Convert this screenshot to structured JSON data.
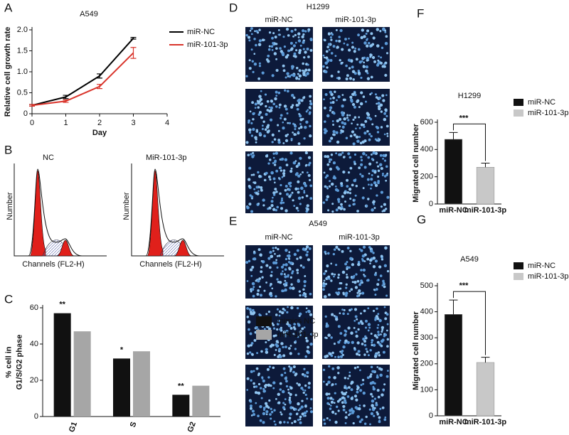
{
  "panel_labels": [
    "A",
    "B",
    "C",
    "D",
    "E",
    "F",
    "G"
  ],
  "flow_cytometry": {
    "titles": [
      "NC",
      "MiR-101-3p"
    ],
    "xlabel": "Channels (FL2-H)",
    "ylabel": "Number"
  },
  "micrographs": [
    {
      "title": "H1299",
      "columns": [
        "miR-NC",
        "miR-101-3p"
      ]
    },
    {
      "title": "A549",
      "columns": [
        "miR-NC",
        "miR-101-3p"
      ]
    }
  ],
  "chart_data": [
    {
      "type": "line",
      "title": "A549",
      "xlabel": "Day",
      "ylabel": "Relative cell growth rate",
      "x": [
        0,
        1,
        2,
        3
      ],
      "series": [
        {
          "name": "miR-NC",
          "color": "#000000",
          "values": [
            0.2,
            0.4,
            0.9,
            1.8
          ],
          "errors": [
            0.02,
            0.04,
            0.05,
            0.02
          ]
        },
        {
          "name": "miR-101-3p",
          "color": "#d9342b",
          "values": [
            0.2,
            0.3,
            0.65,
            1.45
          ],
          "errors": [
            0.02,
            0.03,
            0.05,
            0.13
          ]
        }
      ],
      "xlim": [
        0,
        4
      ],
      "xticks": [
        0,
        1,
        2,
        3,
        4
      ],
      "ylim": [
        0,
        2
      ],
      "yticks": [
        0,
        0.5,
        {
          "value": 1,
          "label": "1.0"
        },
        1.5,
        {
          "value": 2,
          "label": "2.0"
        }
      ]
    },
    {
      "type": "bar",
      "ylabel": [
        "% cell in",
        "G1/S/G2 phase"
      ],
      "categories": [
        "G1",
        "S",
        "G2"
      ],
      "series": [
        {
          "name": "mimics NC",
          "color": "#111111",
          "values": [
            57,
            32,
            12
          ]
        },
        {
          "name": "miR-101-3p",
          "color": "#a6a6a6",
          "values": [
            47,
            36,
            17
          ]
        }
      ],
      "annotations": [
        "**",
        "*",
        "**"
      ],
      "ylim": [
        0,
        60
      ],
      "yticks": [
        0,
        20,
        40,
        60
      ]
    },
    {
      "type": "bar",
      "title": "H1299",
      "ylabel": "Migrated cell number",
      "categories": [
        "miR-NC",
        "miR-101-3p"
      ],
      "values": [
        475,
        270
      ],
      "errors": [
        50,
        30
      ],
      "colors": [
        "#111111",
        "#c8c8c8"
      ],
      "annotation": "***",
      "ylim": [
        0,
        600
      ],
      "yticks": [
        0,
        200,
        400,
        600
      ]
    },
    {
      "type": "bar",
      "title": "A549",
      "ylabel": "Migrated cell number",
      "categories": [
        "miR-NC",
        "miR-101-3p"
      ],
      "values": [
        390,
        205
      ],
      "errors": [
        55,
        20
      ],
      "colors": [
        "#111111",
        "#c8c8c8"
      ],
      "annotation": "***",
      "ylim": [
        0,
        500
      ],
      "yticks": [
        0,
        100,
        200,
        300,
        400,
        500
      ]
    }
  ]
}
